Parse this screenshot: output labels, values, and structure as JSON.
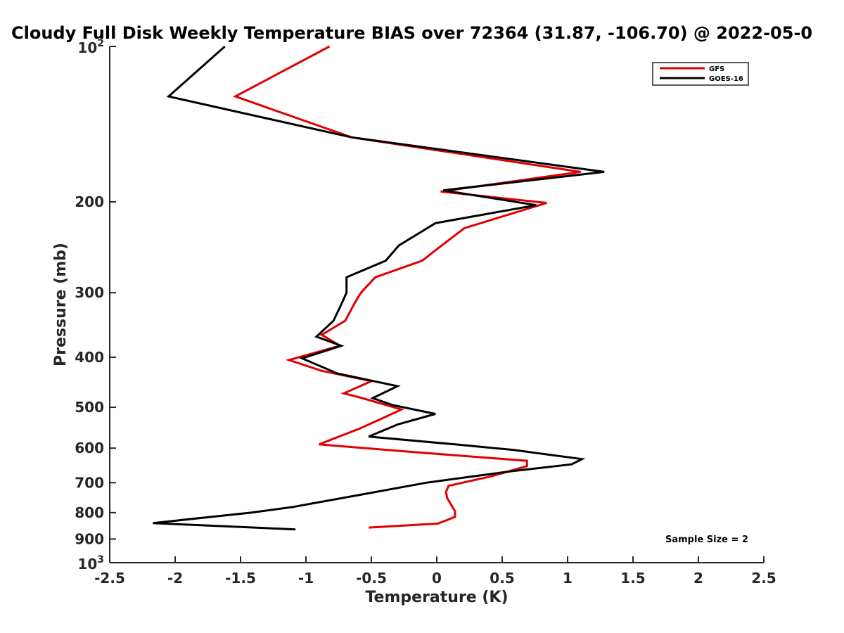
{
  "chart_data": {
    "type": "line",
    "title": "Cloudy Full Disk Weekly Temperature BIAS over 72364 (31.87, -106.70) @ 2022-05-0",
    "xlabel": "Temperature (K)",
    "ylabel": "Pressure (mb)",
    "xlim": [
      -2.5,
      2.5
    ],
    "ylim": [
      100,
      1000
    ],
    "yscale": "log",
    "y_reversed": true,
    "grid": false,
    "legend_position": "top-right",
    "x_ticks": [
      {
        "value": -2.5,
        "label": "-2.5"
      },
      {
        "value": -2,
        "label": "-2"
      },
      {
        "value": -1.5,
        "label": "-1.5"
      },
      {
        "value": -1,
        "label": "-1"
      },
      {
        "value": -0.5,
        "label": "-0.5"
      },
      {
        "value": 0,
        "label": "0"
      },
      {
        "value": 0.5,
        "label": "0.5"
      },
      {
        "value": 1,
        "label": "1"
      },
      {
        "value": 1.5,
        "label": "1.5"
      },
      {
        "value": 2,
        "label": "2"
      },
      {
        "value": 2.5,
        "label": "2.5"
      }
    ],
    "y_ticks": [
      {
        "value": 200,
        "label": "200"
      },
      {
        "value": 300,
        "label": "300"
      },
      {
        "value": 400,
        "label": "400"
      },
      {
        "value": 500,
        "label": "500"
      },
      {
        "value": 600,
        "label": "600"
      },
      {
        "value": 700,
        "label": "700"
      },
      {
        "value": 800,
        "label": "800"
      },
      {
        "value": 900,
        "label": "900"
      }
    ],
    "y_tick_power_top": {
      "value": 100,
      "base": "10",
      "exp": "2"
    },
    "y_tick_power_bottom": {
      "value": 1000,
      "base": "10",
      "exp": "3"
    },
    "annotation": "Sample Size = 2",
    "series": [
      {
        "name": "GFS",
        "color": "#e00000",
        "points": [
          [
            -0.82,
            100
          ],
          [
            -1.54,
            125
          ],
          [
            -0.65,
            150
          ],
          [
            1.1,
            175
          ],
          [
            0.03,
            191
          ],
          [
            0.84,
            201
          ],
          [
            0.21,
            225
          ],
          [
            0.02,
            245
          ],
          [
            -0.11,
            260
          ],
          [
            -0.47,
            280
          ],
          [
            -0.58,
            300
          ],
          [
            -0.63,
            315
          ],
          [
            -0.7,
            340
          ],
          [
            -0.88,
            362
          ],
          [
            -0.74,
            380
          ],
          [
            -1.13,
            405
          ],
          [
            -0.88,
            425
          ],
          [
            -0.5,
            445
          ],
          [
            -0.71,
            470
          ],
          [
            -0.57,
            480
          ],
          [
            -0.27,
            505
          ],
          [
            -0.45,
            530
          ],
          [
            -0.59,
            550
          ],
          [
            -0.9,
            590
          ],
          [
            -0.27,
            608
          ],
          [
            0.69,
            635
          ],
          [
            0.69,
            650
          ],
          [
            0.42,
            680
          ],
          [
            0.09,
            710
          ],
          [
            0.07,
            730
          ],
          [
            0.08,
            750
          ],
          [
            0.12,
            780
          ],
          [
            0.14,
            795
          ],
          [
            0.14,
            815
          ],
          [
            0.01,
            840
          ],
          [
            -0.52,
            855
          ]
        ]
      },
      {
        "name": "GOES-16",
        "color": "#000000",
        "points": [
          [
            -1.62,
            100
          ],
          [
            -2.05,
            125
          ],
          [
            -0.65,
            150
          ],
          [
            1.28,
            175
          ],
          [
            0.05,
            190
          ],
          [
            0.76,
            203
          ],
          [
            -0.01,
            220
          ],
          [
            -0.29,
            243
          ],
          [
            -0.39,
            260
          ],
          [
            -0.69,
            280
          ],
          [
            -0.69,
            300
          ],
          [
            -0.74,
            320
          ],
          [
            -0.79,
            340
          ],
          [
            -0.92,
            365
          ],
          [
            -0.73,
            380
          ],
          [
            -1.03,
            402
          ],
          [
            -0.76,
            430
          ],
          [
            -0.3,
            455
          ],
          [
            -0.49,
            480
          ],
          [
            -0.34,
            495
          ],
          [
            -0.01,
            515
          ],
          [
            -0.3,
            540
          ],
          [
            -0.52,
            570
          ],
          [
            0.14,
            590
          ],
          [
            0.59,
            605
          ],
          [
            1.11,
            630
          ],
          [
            1.03,
            645
          ],
          [
            0.57,
            665
          ],
          [
            -0.08,
            700
          ],
          [
            -0.6,
            740
          ],
          [
            -1.1,
            780
          ],
          [
            -1.42,
            800
          ],
          [
            -2.17,
            838
          ],
          [
            -1.08,
            862
          ]
        ]
      }
    ]
  }
}
